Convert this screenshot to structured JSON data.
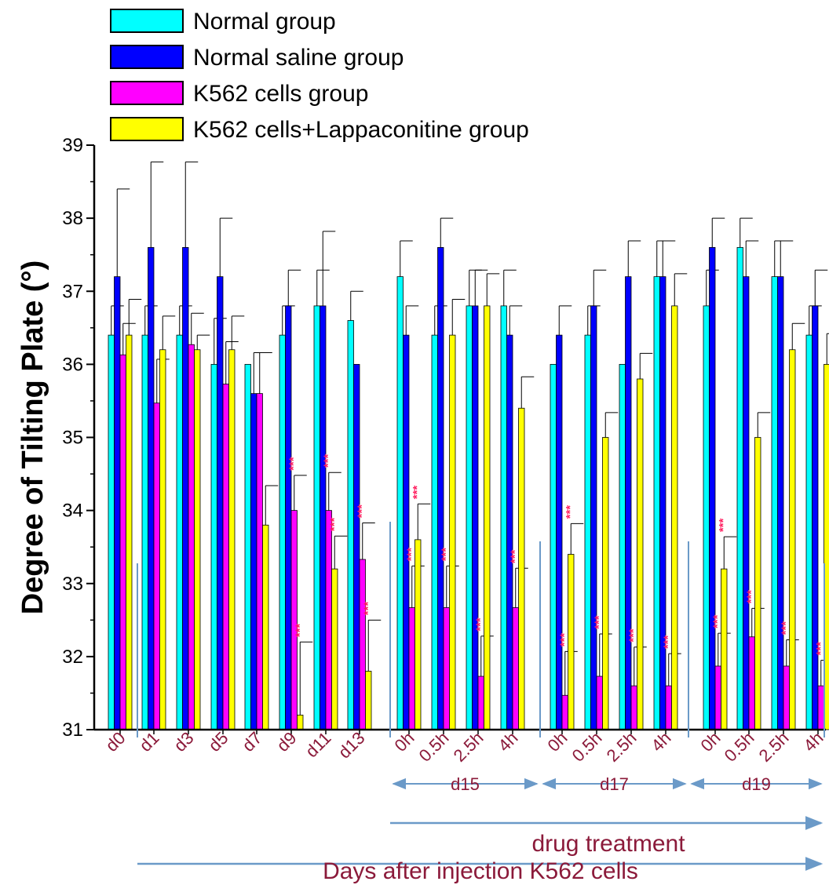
{
  "chart_data": {
    "type": "bar",
    "ylabel": "Degree of Tilting Plate  (°)",
    "ylim": [
      31,
      39
    ],
    "yticks": [
      "31",
      "32",
      "33",
      "34",
      "35",
      "36",
      "37",
      "38",
      "39"
    ],
    "categories": [
      "d0",
      "d1",
      "d3",
      "d5",
      "d7",
      "d9",
      "d11",
      "d13",
      "0h",
      "0.5h",
      "2.5h",
      "4h",
      "0h",
      "0.5h",
      "2.5h",
      "4h",
      "0h",
      "0.5h",
      "2.5h",
      "4h"
    ],
    "series": [
      {
        "name": "Normal group",
        "color": "#00ffff",
        "values": [
          36.4,
          36.4,
          36.4,
          36.0,
          36.0,
          36.4,
          36.8,
          36.6,
          37.2,
          36.4,
          36.8,
          36.8,
          36.0,
          36.4,
          36.0,
          37.2,
          36.8,
          37.6,
          37.2,
          36.4
        ],
        "errors": [
          0.4,
          0.4,
          0.4,
          0.63,
          0.0,
          0.4,
          0.49,
          0.4,
          0.49,
          0.4,
          0.49,
          0.49,
          0.0,
          0.4,
          0.0,
          0.49,
          0.49,
          0.4,
          0.49,
          0.4
        ]
      },
      {
        "name": "Normal saline group",
        "color": "#0000ff",
        "values": [
          37.2,
          37.6,
          37.6,
          37.2,
          35.6,
          36.8,
          36.8,
          36.0,
          36.4,
          37.6,
          36.8,
          36.4,
          36.4,
          36.8,
          37.2,
          37.2,
          37.6,
          37.2,
          37.2,
          36.8
        ],
        "errors": [
          1.2,
          1.17,
          1.17,
          0.8,
          0.56,
          0.49,
          1.02,
          0.0,
          0.4,
          0.4,
          0.49,
          0.4,
          0.4,
          0.49,
          0.49,
          0.49,
          0.4,
          0.49,
          0.49,
          0.49
        ]
      },
      {
        "name": "K562 cells group",
        "color": "#ff00ff",
        "values": [
          36.13,
          35.47,
          36.27,
          35.73,
          35.6,
          34.0,
          34.0,
          33.33,
          32.67,
          32.67,
          31.73,
          32.67,
          31.47,
          31.73,
          31.6,
          31.6,
          31.87,
          32.27,
          31.87,
          31.6
        ],
        "errors": [
          0.43,
          0.6,
          0.43,
          0.58,
          0.56,
          0.48,
          0.52,
          0.5,
          0.57,
          0.57,
          0.55,
          0.54,
          0.6,
          0.58,
          0.53,
          0.44,
          0.45,
          0.39,
          0.36,
          0.35
        ],
        "markers": [
          "",
          "",
          "",
          "",
          "",
          "***",
          "***",
          "***",
          "***",
          "***",
          "***",
          "***",
          "***",
          "***",
          "***",
          "***",
          "***",
          "***",
          "***",
          "***"
        ]
      },
      {
        "name": "K562 cells+Lappaconitine group",
        "color": "#ffff00",
        "values": [
          36.4,
          36.2,
          36.2,
          36.2,
          33.8,
          31.2,
          33.2,
          31.8,
          33.6,
          36.4,
          36.8,
          35.4,
          33.4,
          35.0,
          35.8,
          36.8,
          33.2,
          35.0,
          36.2,
          36.0
        ],
        "errors": [
          0.49,
          0.46,
          0.2,
          0.46,
          0.54,
          1.0,
          0.45,
          0.7,
          0.49,
          0.49,
          0.44,
          0.43,
          0.42,
          0.34,
          0.35,
          0.44,
          0.44,
          0.34,
          0.36,
          0.42
        ],
        "markers": [
          "",
          "",
          "",
          "",
          "",
          "***",
          "***",
          "***",
          "***",
          "",
          "",
          "",
          "***",
          "",
          "",
          "",
          "***",
          "",
          "",
          ""
        ]
      }
    ],
    "legend_position": "top-left",
    "grid": false,
    "annotations": {
      "d15": "d15",
      "d17": "d17",
      "d19": "d19",
      "drug": "drug treatment",
      "days": "Days after injection K562 cells"
    }
  }
}
